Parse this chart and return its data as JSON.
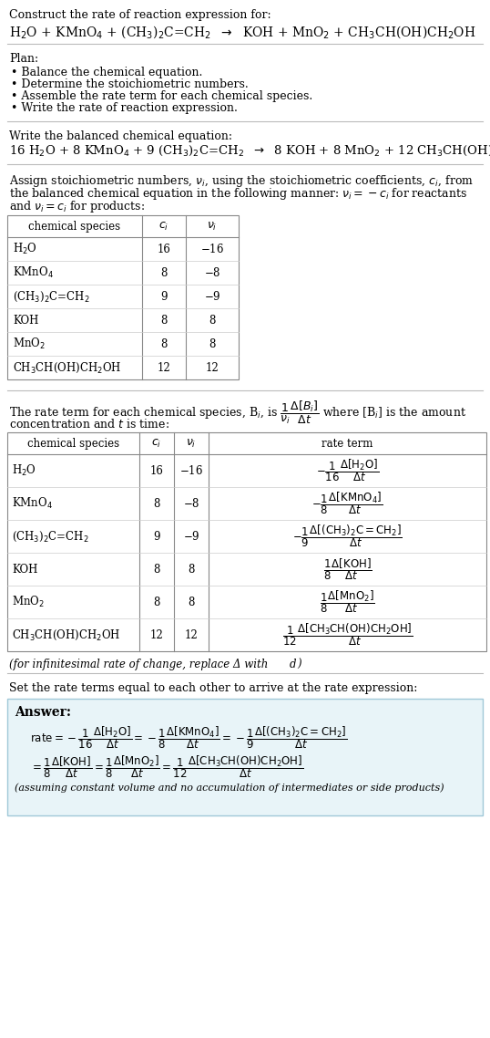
{
  "bg_color": "#ffffff",
  "text_color": "#000000",
  "answer_bg": "#e8f4f8",
  "answer_border": "#a0c8d8",
  "title_text": "Construct the rate of reaction expression for:",
  "plan_header": "Plan:",
  "plan_items": [
    "• Balance the chemical equation.",
    "• Determine the stoichiometric numbers.",
    "• Assemble the rate term for each chemical species.",
    "• Write the rate of reaction expression."
  ],
  "balanced_header": "Write the balanced chemical equation:",
  "stoich_intro_lines": [
    "Assign stoichiometric numbers, $\\nu_i$, using the stoichiometric coefficients, $c_i$, from",
    "the balanced chemical equation in the following manner: $\\nu_i = -c_i$ for reactants",
    "and $\\nu_i = c_i$ for products:"
  ],
  "table1_rows": [
    [
      "H$_2$O",
      "16",
      "$-$16"
    ],
    [
      "KMnO$_4$",
      "8",
      "$-$8"
    ],
    [
      "(CH$_3$)$_2$C=CH$_2$",
      "9",
      "$-$9"
    ],
    [
      "KOH",
      "8",
      "8"
    ],
    [
      "MnO$_2$",
      "8",
      "8"
    ],
    [
      "CH$_3$CH(OH)CH$_2$OH",
      "12",
      "12"
    ]
  ],
  "infinitesimal_note": "(for infinitesimal rate of change, replace Δ with d)",
  "set_equal_text": "Set the rate terms equal to each other to arrive at the rate expression:",
  "answer_label": "Answer:",
  "answer_note": "(assuming constant volume and no accumulation of intermediates or side products)"
}
